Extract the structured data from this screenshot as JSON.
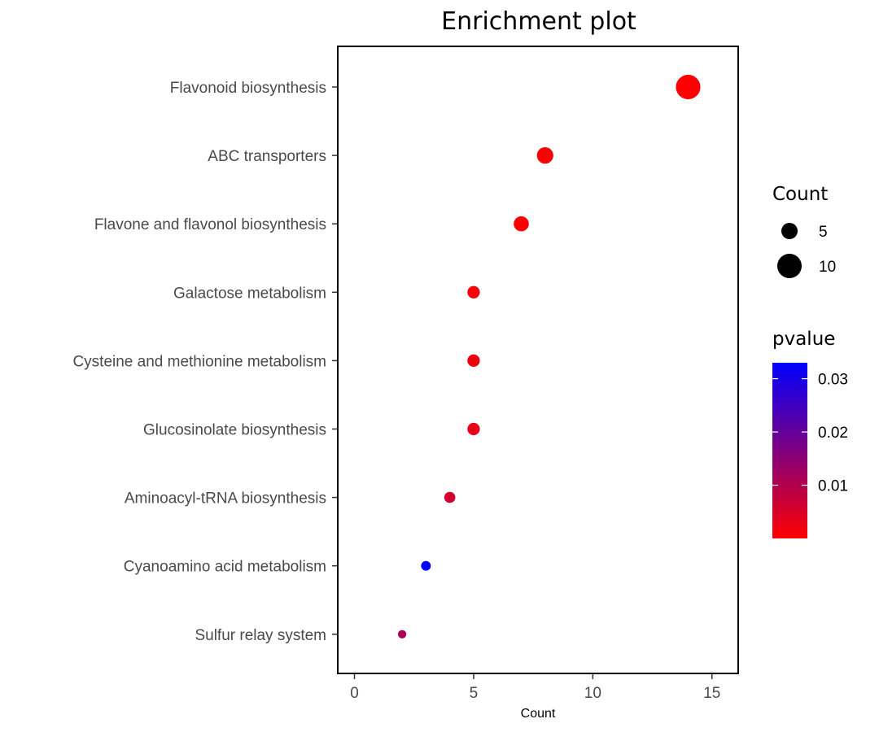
{
  "chart_data": {
    "type": "scatter",
    "title": "Enrichment plot",
    "xlabel": "Count",
    "ylabel": "",
    "xlim": [
      -0.7,
      16.1
    ],
    "xticks": [
      0,
      5,
      10,
      15
    ],
    "categories": [
      "Flavonoid biosynthesis",
      "ABC transporters",
      "Flavone and flavonol biosynthesis",
      "Galactose metabolism",
      "Cysteine and methionine metabolism",
      "Glucosinolate biosynthesis",
      "Aminoacyl-tRNA biosynthesis",
      "Cyanoamino acid metabolism",
      "Sulfur relay system"
    ],
    "points": [
      {
        "category": "Flavonoid biosynthesis",
        "count": 14,
        "pvalue": 0.0001
      },
      {
        "category": "ABC transporters",
        "count": 8,
        "pvalue": 0.0006
      },
      {
        "category": "Flavone and flavonol biosynthesis",
        "count": 7,
        "pvalue": 0.0004
      },
      {
        "category": "Galactose metabolism",
        "count": 5,
        "pvalue": 0.0006
      },
      {
        "category": "Cysteine and methionine metabolism",
        "count": 5,
        "pvalue": 0.002
      },
      {
        "category": "Glucosinolate biosynthesis",
        "count": 5,
        "pvalue": 0.003
      },
      {
        "category": "Aminoacyl-tRNA biosynthesis",
        "count": 4,
        "pvalue": 0.006
      },
      {
        "category": "Cyanoamino acid metabolism",
        "count": 3,
        "pvalue": 0.033
      },
      {
        "category": "Sulfur relay system",
        "count": 2,
        "pvalue": 0.011
      }
    ],
    "size_legend": {
      "title": "Count",
      "entries": [
        {
          "label": "5",
          "value": 5
        },
        {
          "label": "10",
          "value": 10
        }
      ]
    },
    "color_legend": {
      "title": "pvalue",
      "low_color": "#ff0000",
      "high_color": "#0000ff",
      "range": [
        0,
        0.033
      ],
      "ticks": [
        {
          "label": "0.03",
          "value": 0.03
        },
        {
          "label": "0.02",
          "value": 0.02
        },
        {
          "label": "0.01",
          "value": 0.01
        }
      ]
    },
    "grid": false,
    "legend_position": "right"
  }
}
